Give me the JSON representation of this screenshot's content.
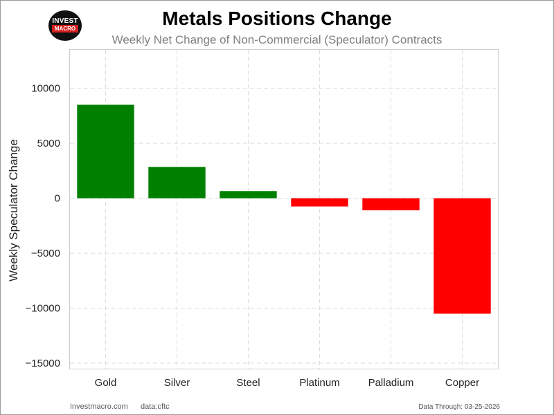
{
  "logo": {
    "line1": "INVEST",
    "line2": "MACRO"
  },
  "footer": {
    "site": "Investmacro.com",
    "source": "data:cftc",
    "date": "Data Through: 03-25-2026"
  },
  "colors": {
    "positive": "#008000",
    "negative": "#ff0000",
    "grid": "#dddddd",
    "axis_text": "#222222"
  },
  "chart_data": {
    "type": "bar",
    "title": "Metals Positions Change",
    "subtitle": "Weekly Net Change of Non-Commercial (Speculator) Contracts",
    "xlabel": "",
    "ylabel": "Weekly Speculator Change",
    "categories": [
      "Gold",
      "Silver",
      "Steel",
      "Platinum",
      "Palladium",
      "Copper"
    ],
    "values": [
      8500,
      2850,
      650,
      -750,
      -1100,
      -10500
    ],
    "ylim": [
      -15500,
      13500
    ],
    "yticks": [
      10000,
      5000,
      0,
      -5000,
      -10000,
      -15000
    ],
    "ytick_labels": [
      "10000",
      "5000",
      "0",
      "−5000",
      "−10000",
      "−15000"
    ],
    "grid": true,
    "color_rule": "green for positive, red for negative"
  }
}
